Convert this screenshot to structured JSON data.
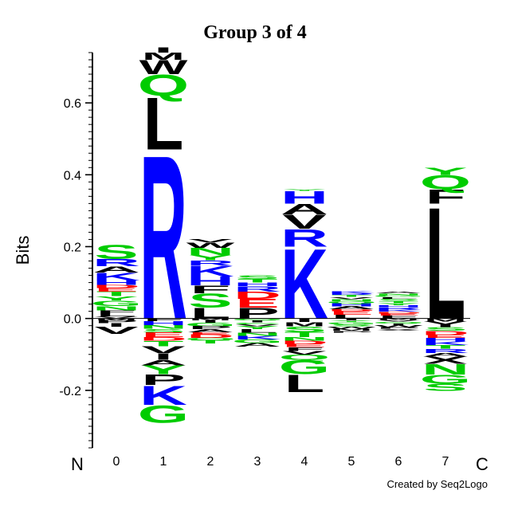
{
  "chart_data": {
    "type": "sequence-logo",
    "title": "Group 3 of 4",
    "ylabel": "Bits",
    "ylim": [
      -0.36,
      0.74
    ],
    "yticks": [
      {
        "value": -0.2,
        "label": "-0.2"
      },
      {
        "value": 0.0,
        "label": "0.0"
      },
      {
        "value": 0.2,
        "label": "0.2"
      },
      {
        "value": 0.4,
        "label": "0.4"
      },
      {
        "value": 0.6,
        "label": "0.6"
      }
    ],
    "n_terminal_label": "N",
    "c_terminal_label": "C",
    "positions": [
      {
        "label": "0",
        "positive": [
          [
            "V",
            0.006
          ],
          [
            "L",
            0.008
          ],
          [
            "F",
            0.009
          ],
          [
            "N",
            0.012
          ],
          [
            "G",
            0.015
          ],
          [
            "Y",
            0.012
          ],
          [
            "T",
            0.013
          ],
          [
            "E",
            0.01
          ],
          [
            "D",
            0.008
          ],
          [
            "H",
            0.013
          ],
          [
            "K",
            0.022
          ],
          [
            "A",
            0.018
          ],
          [
            "R",
            0.02
          ],
          [
            "S",
            0.04
          ]
        ],
        "negative": [
          [
            "M",
            0.005
          ],
          [
            "P",
            0.008
          ],
          [
            "I",
            0.01
          ],
          [
            "V",
            0.02
          ]
        ]
      },
      {
        "label": "1",
        "positive": [
          [
            "R",
            0.47
          ],
          [
            "L",
            0.15
          ],
          [
            "Q",
            0.06
          ],
          [
            "W",
            0.04
          ],
          [
            "M",
            0.02
          ],
          [
            "I",
            0.015
          ]
        ],
        "negative": [
          [
            "F",
            0.007
          ],
          [
            "H",
            0.012
          ],
          [
            "N",
            0.01
          ],
          [
            "S",
            0.01
          ],
          [
            "E",
            0.013
          ],
          [
            "D",
            0.01
          ],
          [
            "T",
            0.015
          ],
          [
            "V",
            0.02
          ],
          [
            "I",
            0.018
          ],
          [
            "A",
            0.015
          ],
          [
            "Y",
            0.025
          ],
          [
            "P",
            0.03
          ],
          [
            "K",
            0.055
          ],
          [
            "G",
            0.05
          ]
        ]
      },
      {
        "label": "2",
        "positive": [
          [
            "L",
            0.03
          ],
          [
            "S",
            0.04
          ],
          [
            "F",
            0.022
          ],
          [
            "H",
            0.025
          ],
          [
            "K",
            0.03
          ],
          [
            "R",
            0.015
          ],
          [
            "Y",
            0.015
          ],
          [
            "N",
            0.02
          ],
          [
            "W",
            0.015
          ],
          [
            "V",
            0.008
          ]
        ],
        "negative": [
          [
            "M",
            0.005
          ],
          [
            "I",
            0.007
          ],
          [
            "G",
            0.01
          ],
          [
            "P",
            0.008
          ],
          [
            "A",
            0.008
          ],
          [
            "E",
            0.006
          ],
          [
            "D",
            0.01
          ],
          [
            "Q",
            0.006
          ],
          [
            "T",
            0.01
          ]
        ]
      },
      {
        "label": "3",
        "positive": [
          [
            "P",
            0.03
          ],
          [
            "E",
            0.025
          ],
          [
            "D",
            0.02
          ],
          [
            "R",
            0.015
          ],
          [
            "H",
            0.01
          ],
          [
            "T",
            0.01
          ],
          [
            "S",
            0.01
          ]
        ],
        "negative": [
          [
            "Q",
            0.005
          ],
          [
            "I",
            0.006
          ],
          [
            "C",
            0.005
          ],
          [
            "V",
            0.006
          ],
          [
            "Y",
            0.008
          ],
          [
            "L",
            0.01
          ],
          [
            "N",
            0.008
          ],
          [
            "K",
            0.01
          ],
          [
            "G",
            0.01
          ],
          [
            "A",
            0.01
          ]
        ]
      },
      {
        "label": "4",
        "positive": [
          [
            "K",
            0.2
          ],
          [
            "R",
            0.05
          ],
          [
            "V",
            0.04
          ],
          [
            "A",
            0.03
          ],
          [
            "H",
            0.035
          ],
          [
            "Y",
            0.005
          ]
        ],
        "negative": [
          [
            "I",
            0.01
          ],
          [
            "M",
            0.012
          ],
          [
            "S",
            0.015
          ],
          [
            "T",
            0.015
          ],
          [
            "N",
            0.01
          ],
          [
            "D",
            0.01
          ],
          [
            "E",
            0.008
          ],
          [
            "F",
            0.01
          ],
          [
            "V",
            0.01
          ],
          [
            "Q",
            0.015
          ],
          [
            "G",
            0.04
          ],
          [
            "L",
            0.05
          ]
        ]
      },
      {
        "label": "5",
        "positive": [
          [
            "L",
            0.01
          ],
          [
            "E",
            0.01
          ],
          [
            "D",
            0.006
          ],
          [
            "A",
            0.008
          ],
          [
            "H",
            0.008
          ],
          [
            "Q",
            0.006
          ],
          [
            "N",
            0.006
          ],
          [
            "V",
            0.006
          ],
          [
            "T",
            0.006
          ],
          [
            "R",
            0.004
          ],
          [
            "K",
            0.006
          ]
        ],
        "negative": [
          [
            "I",
            0.005
          ],
          [
            "Y",
            0.005
          ],
          [
            "G",
            0.006
          ],
          [
            "S",
            0.006
          ],
          [
            "W",
            0.006
          ],
          [
            "M",
            0.006
          ],
          [
            "P",
            0.005
          ]
        ]
      },
      {
        "label": "6",
        "positive": [
          [
            "F",
            0.008
          ],
          [
            "E",
            0.006
          ],
          [
            "D",
            0.005
          ],
          [
            "K",
            0.006
          ],
          [
            "R",
            0.006
          ],
          [
            "H",
            0.006
          ],
          [
            "Y",
            0.006
          ],
          [
            "T",
            0.006
          ],
          [
            "S",
            0.006
          ],
          [
            "L",
            0.005
          ],
          [
            "G",
            0.005
          ],
          [
            "N",
            0.005
          ],
          [
            "A",
            0.004
          ]
        ],
        "negative": [
          [
            "M",
            0.004
          ],
          [
            "V",
            0.005
          ],
          [
            "Q",
            0.005
          ],
          [
            "I",
            0.005
          ],
          [
            "W",
            0.005
          ],
          [
            "P",
            0.005
          ],
          [
            "X",
            0.005
          ]
        ]
      },
      {
        "label": "7",
        "positive": [
          [
            "L",
            0.32
          ],
          [
            "F",
            0.04
          ],
          [
            "Q",
            0.04
          ],
          [
            "Y",
            0.02
          ]
        ],
        "negative": [
          [
            "M",
            0.008
          ],
          [
            "V",
            0.008
          ],
          [
            "I",
            0.008
          ],
          [
            "S",
            0.01
          ],
          [
            "D",
            0.012
          ],
          [
            "E",
            0.008
          ],
          [
            "H",
            0.01
          ],
          [
            "K",
            0.01
          ],
          [
            "T",
            0.01
          ],
          [
            "R",
            0.012
          ],
          [
            "A",
            0.01
          ],
          [
            "X",
            0.02
          ],
          [
            "N",
            0.03
          ],
          [
            "G",
            0.025
          ],
          [
            "S",
            0.02
          ]
        ]
      }
    ]
  },
  "footer": {
    "credit": "Created by Seq2Logo"
  },
  "colors": {
    "acidic": "#ff0000",
    "basic": "#0000ff",
    "polar": "#00cc00",
    "hydrophobic": "#000000",
    "axis": "#000000"
  }
}
